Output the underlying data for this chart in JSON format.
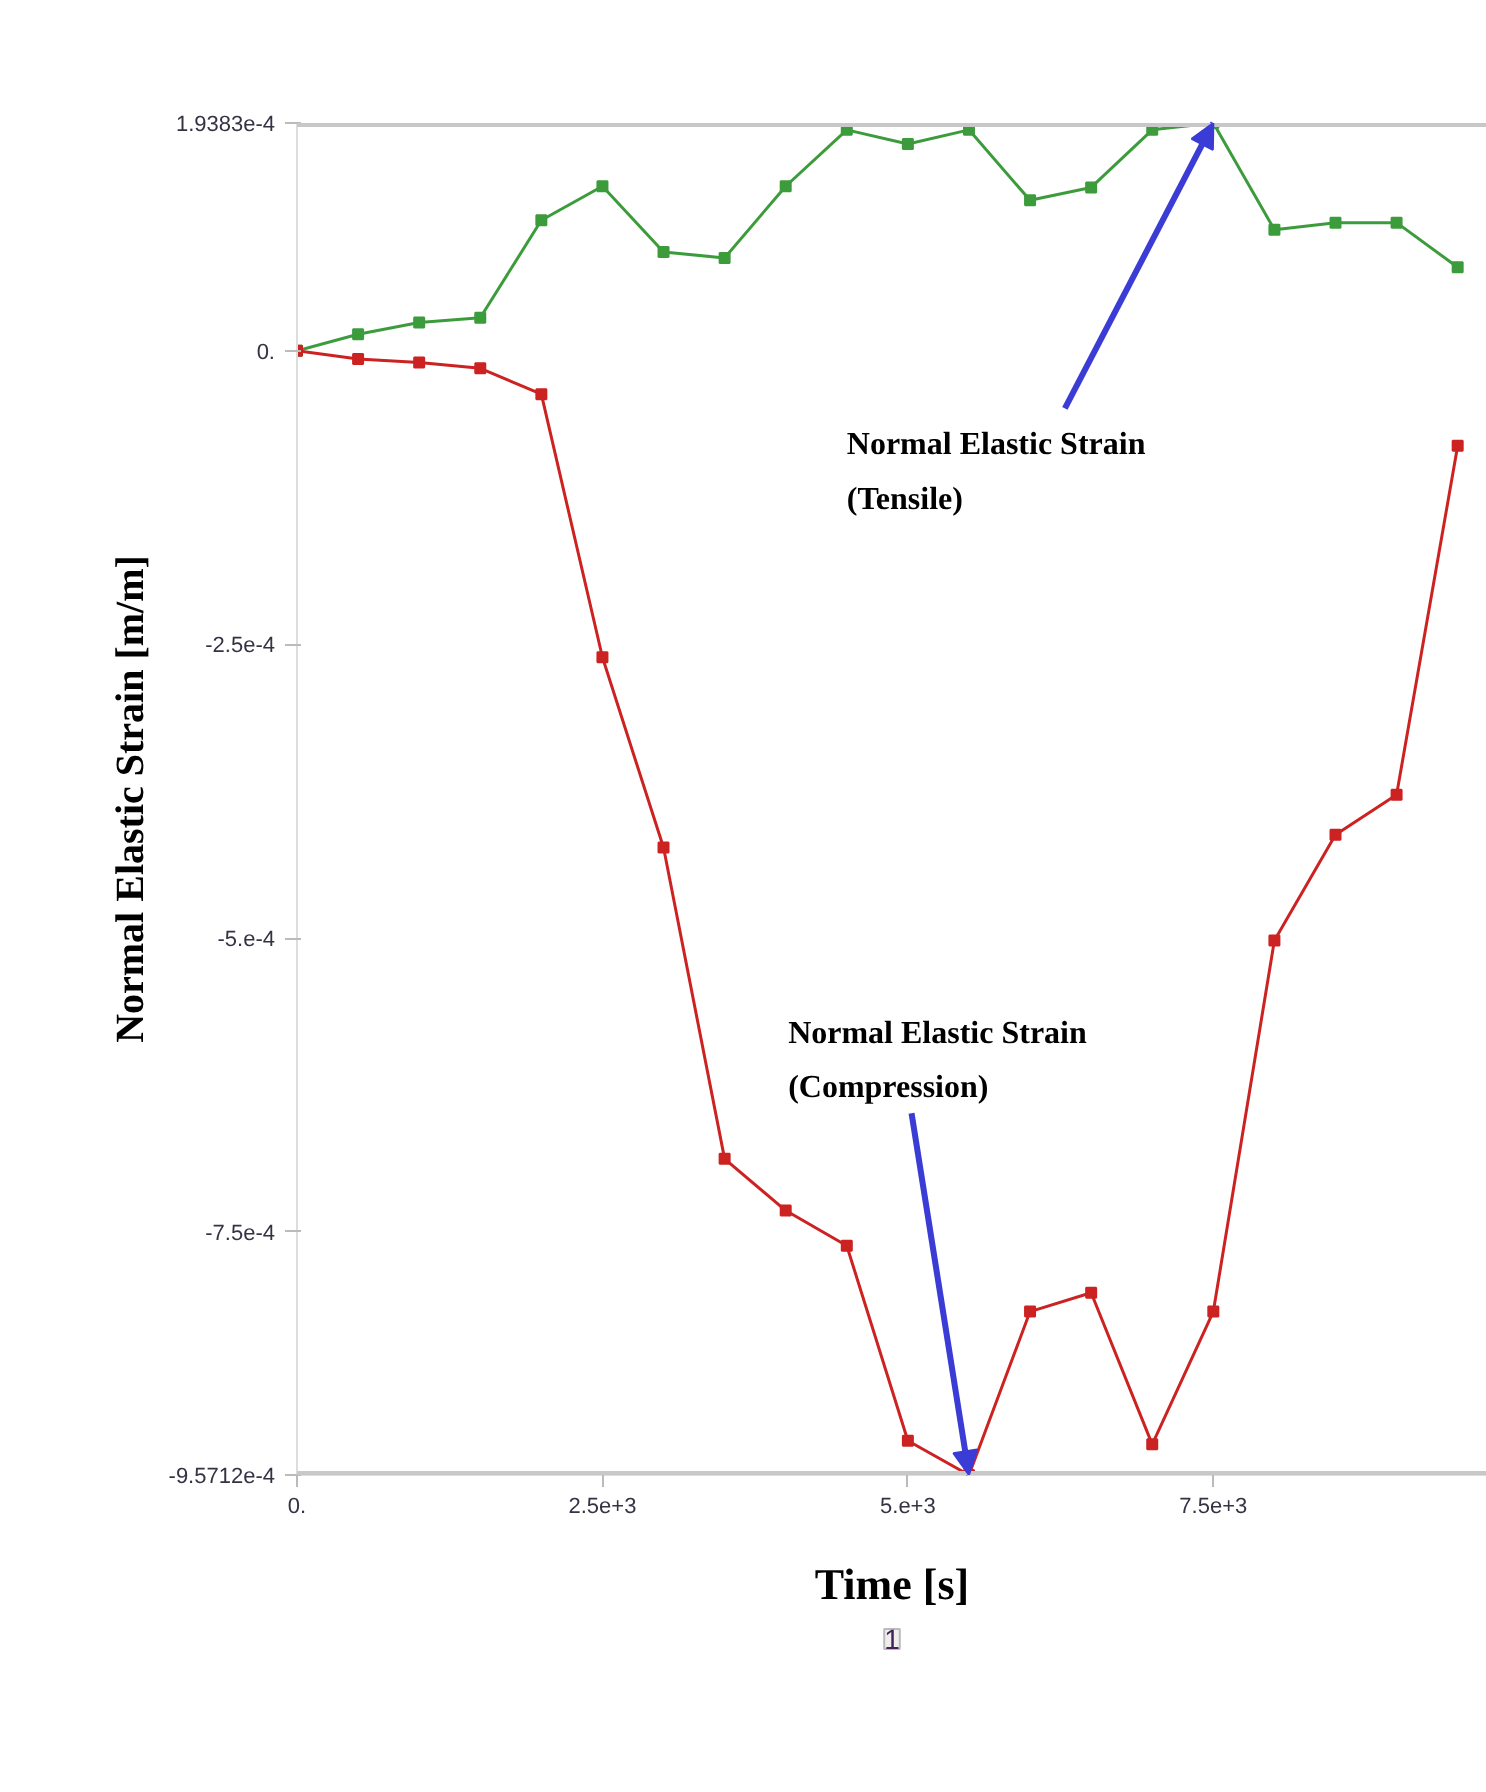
{
  "chart_data": {
    "type": "line",
    "xlabel": "Time [s]",
    "ylabel": "Normal Elastic Strain [m/m]",
    "x": [
      0,
      500,
      1000,
      1500,
      2000,
      2500,
      3000,
      3500,
      4000,
      4500,
      5000,
      5500,
      6000,
      6500,
      7000,
      7500,
      8000,
      8500,
      9000,
      9500
    ],
    "series": [
      {
        "color": "#3c9c3c",
        "values": [
          0,
          1.4e-05,
          2.4e-05,
          2.8e-05,
          0.000111,
          0.00014,
          8.4e-05,
          7.9e-05,
          0.00014,
          0.000188,
          0.000176,
          0.000188,
          0.000128,
          0.000139,
          0.000188,
          0.00019383,
          0.000103,
          0.000109,
          0.000109,
          7.1e-05
        ]
      },
      {
        "color": "#cc2222",
        "values": [
          0,
          -7e-06,
          -1e-05,
          -1.5e-05,
          -3.7e-05,
          -0.000261,
          -0.000423,
          -0.000688,
          -0.000732,
          -0.000762,
          -0.000928,
          -0.00095712,
          -0.000818,
          -0.000802,
          -0.000931,
          -0.000818,
          -0.000502,
          -0.000412,
          -0.000378,
          -8.1e-05
        ]
      }
    ],
    "xlim": [
      0,
      9740
    ],
    "ylim": [
      -0.00095712,
      0.00019383
    ],
    "xticks": [
      {
        "value": 0,
        "label": "0."
      },
      {
        "value": 2500,
        "label": "2.5e+3"
      },
      {
        "value": 5000,
        "label": "5.e+3"
      },
      {
        "value": 7500,
        "label": "7.5e+3"
      }
    ],
    "yticks": [
      {
        "value": 0.00019383,
        "label": "1.9383e-4"
      },
      {
        "value": 0,
        "label": "0."
      },
      {
        "value": -0.00025,
        "label": "-2.5e-4"
      },
      {
        "value": -0.0005,
        "label": "-5.e-4"
      },
      {
        "value": -0.00075,
        "label": "-7.5e-4"
      },
      {
        "value": -0.00095712,
        "label": "-9.5712e-4"
      }
    ],
    "grid": false,
    "marker": "square",
    "line_style": "solid",
    "annotations": [
      {
        "text": "Normal Elastic Strain\n(Tensile)",
        "x": 7500,
        "y": 0.00019383
      },
      {
        "text": "Normal Elastic Strain\n(Compression)",
        "x": 5500,
        "y": -0.00095712
      },
      "1"
    ]
  }
}
